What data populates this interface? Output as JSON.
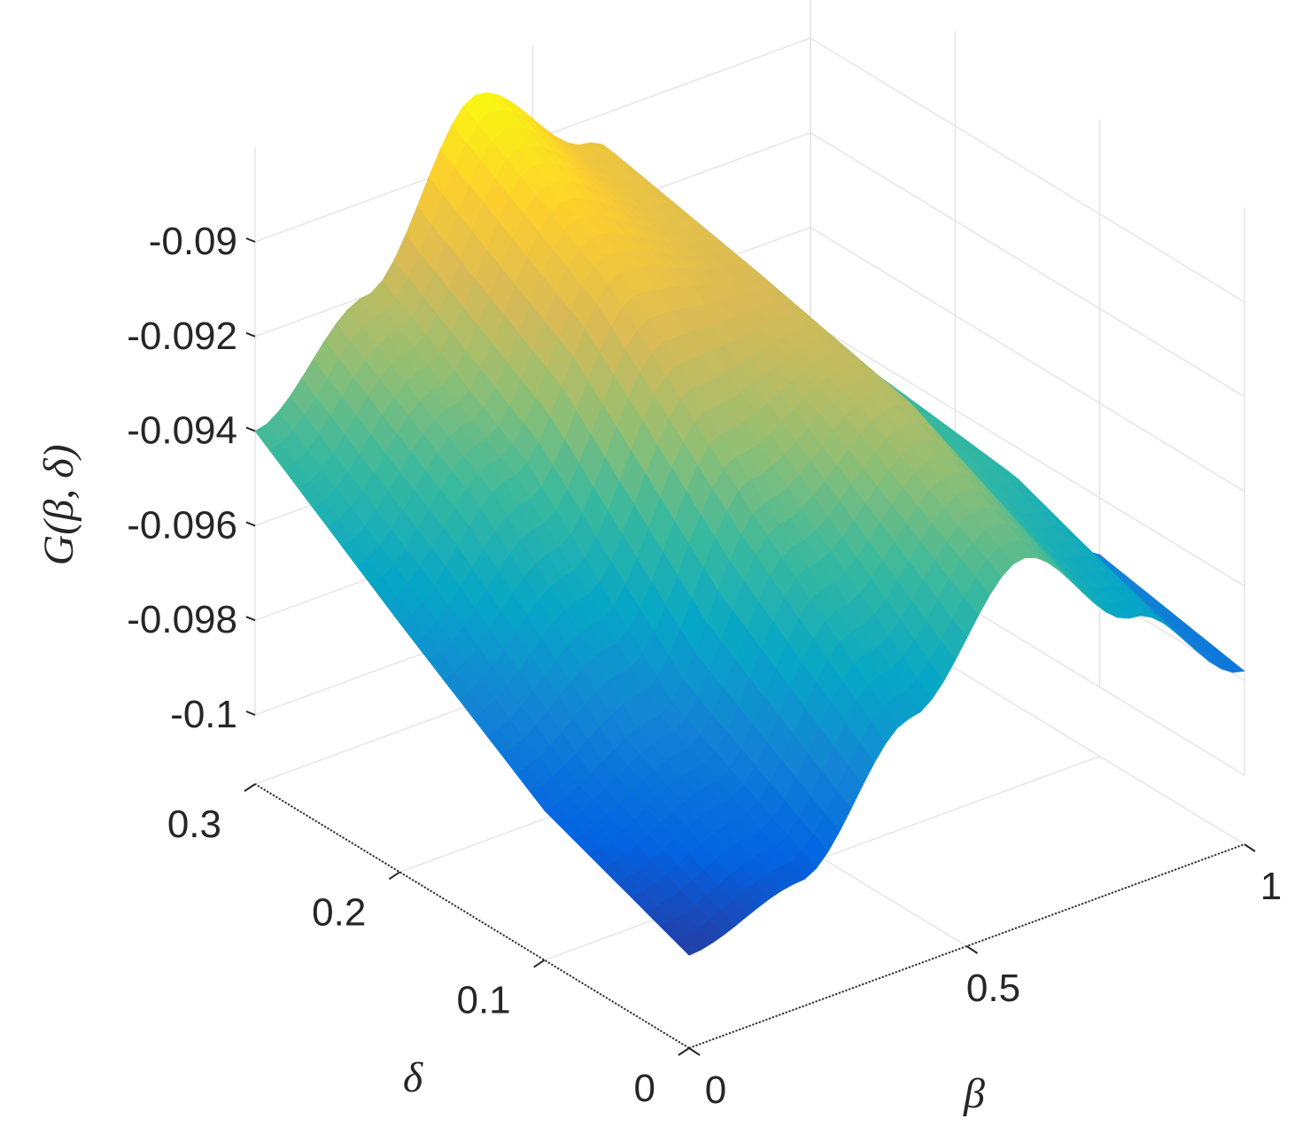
{
  "chart_data": {
    "type": "surface",
    "title": "",
    "xlabel": "β",
    "ylabel": "δ",
    "zlabel": "G(β, δ)",
    "xlim": [
      0,
      1
    ],
    "ylim": [
      0,
      0.3
    ],
    "zlim": [
      -0.1,
      -0.088
    ],
    "x_ticks": [
      {
        "value": 0,
        "label": "0"
      },
      {
        "value": 0.5,
        "label": "0.5"
      },
      {
        "value": 1,
        "label": "1"
      }
    ],
    "y_ticks": [
      {
        "value": 0,
        "label": "0"
      },
      {
        "value": 0.1,
        "label": "0.1"
      },
      {
        "value": 0.2,
        "label": "0.2"
      },
      {
        "value": 0.3,
        "label": "0.3"
      }
    ],
    "z_ticks": [
      {
        "value": -0.1,
        "label": "-0.1"
      },
      {
        "value": -0.098,
        "label": "-0.098"
      },
      {
        "value": -0.096,
        "label": "-0.096"
      },
      {
        "value": -0.094,
        "label": "-0.094"
      },
      {
        "value": -0.092,
        "label": "-0.092"
      },
      {
        "value": -0.09,
        "label": "-0.09"
      }
    ],
    "grid": true,
    "colormap": "parula",
    "colormap_stops": [
      "#352a87",
      "#0363e1",
      "#1485d4",
      "#06a7c6",
      "#38b99e",
      "#92bf73",
      "#d9ba56",
      "#fcce2e",
      "#f9fb0e"
    ],
    "surface_samples": {
      "beta": [
        0,
        0.2,
        0.4,
        0.6,
        0.8,
        1.0
      ],
      "delta": [
        0,
        0.1,
        0.2,
        0.3
      ],
      "G": [
        [
          -0.0995,
          -0.0988,
          -0.0962,
          -0.0937,
          -0.0958,
          -0.0978
        ],
        [
          -0.0983,
          -0.0972,
          -0.0935,
          -0.092,
          -0.0945,
          -0.0972
        ],
        [
          -0.0962,
          -0.094,
          -0.0905,
          -0.0912,
          -0.094,
          -0.0982
        ],
        [
          -0.094,
          -0.092,
          -0.0886,
          -0.0905,
          -0.0935,
          -0.099
        ]
      ]
    }
  }
}
